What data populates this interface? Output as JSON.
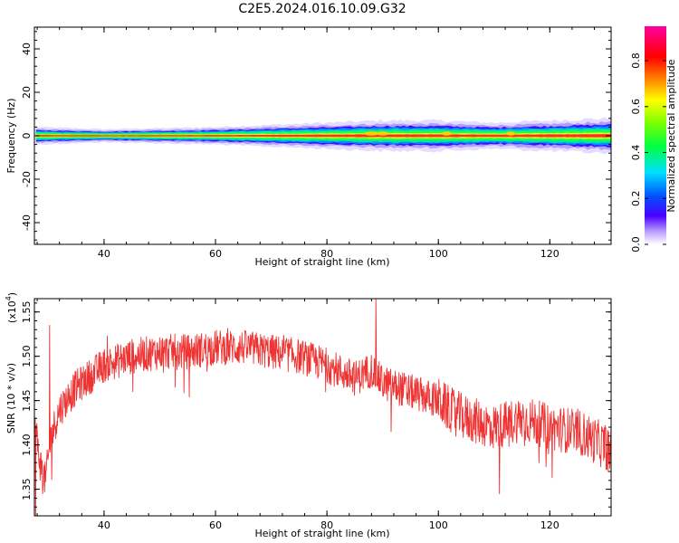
{
  "title": "C2E5.2024.016.10.09.G32",
  "colors": {
    "snr_line": "#ee3333",
    "spectrogram_core": "#ff3030",
    "spectrogram_edge": "#2a00ff",
    "background": "#ffffff"
  },
  "chart_data": [
    {
      "type": "heatmap",
      "name": "spectrogram",
      "xlabel": "Height of straight line (km)",
      "ylabel": "Frequency (Hz)",
      "xlim": [
        27.5,
        131
      ],
      "ylim": [
        -50,
        50
      ],
      "x_ticks": [
        40,
        60,
        80,
        100,
        120
      ],
      "y_ticks": [
        -40,
        -20,
        0,
        20,
        40
      ],
      "y_tick_labels": [
        "-40",
        "-20",
        "0",
        "20",
        "40"
      ],
      "band_center_frequency": 0,
      "band_halfwidth_profile": {
        "x": [
          28,
          40,
          60,
          80,
          90,
          100,
          110,
          120,
          130
        ],
        "halfwidth_hz": [
          2,
          1.5,
          2,
          3,
          3.5,
          3.5,
          3,
          3.5,
          4
        ]
      },
      "colorbar": {
        "label": "Normalized spectral amplitude",
        "range": [
          0,
          0.95
        ],
        "ticks": [
          0.0,
          0.2,
          0.4,
          0.6,
          0.8
        ],
        "tick_labels": [
          "0.0",
          "0.2",
          "0.4",
          "0.6",
          "0.8"
        ],
        "colormap": "rainbow"
      }
    },
    {
      "type": "line",
      "name": "snr",
      "xlabel": "Height of straight line (km)",
      "ylabel": "SNR (10 * v/v)",
      "y_multiplier": "(x10",
      "y_multiplier_exp": "4",
      "y_multiplier_close": ")",
      "xlim": [
        27.5,
        131
      ],
      "ylim": [
        1.32,
        1.565
      ],
      "x_ticks": [
        40,
        60,
        80,
        100,
        120
      ],
      "y_ticks": [
        1.35,
        1.4,
        1.45,
        1.5,
        1.55
      ],
      "y_tick_labels": [
        "1.35",
        "1.40",
        "1.45",
        "1.50",
        "1.55"
      ],
      "trend": {
        "x": [
          27.5,
          28.5,
          29.5,
          30.5,
          32,
          35,
          40,
          45,
          50,
          55,
          60,
          65,
          70,
          75,
          80,
          85,
          88,
          90,
          95,
          100,
          102,
          105,
          110,
          115,
          120,
          125,
          131
        ],
        "y": [
          1.43,
          1.38,
          1.36,
          1.41,
          1.44,
          1.465,
          1.49,
          1.5,
          1.505,
          1.505,
          1.51,
          1.51,
          1.505,
          1.5,
          1.49,
          1.475,
          1.485,
          1.47,
          1.46,
          1.45,
          1.44,
          1.43,
          1.42,
          1.43,
          1.42,
          1.415,
          1.395
        ]
      },
      "noise_amplitude": 0.02,
      "notable_points": {
        "x": [
          27.7,
          29.0,
          30.2,
          88.8,
          91.5,
          111.0,
          130.5
        ],
        "y": [
          1.32,
          1.345,
          1.535,
          1.565,
          1.415,
          1.345,
          1.37
        ]
      }
    }
  ]
}
